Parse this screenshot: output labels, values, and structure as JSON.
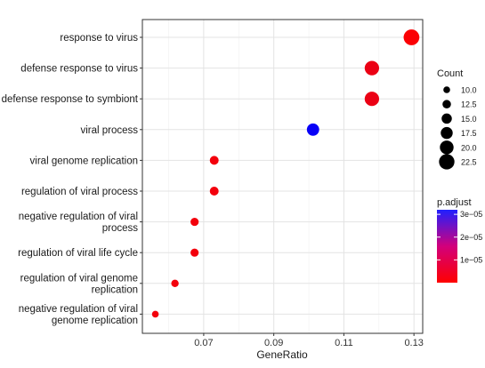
{
  "chart_data": {
    "type": "scatter",
    "xlabel": "GeneRatio",
    "ylabel": "",
    "xlim": [
      0.0525,
      0.1325
    ],
    "x_ticks": [
      "0.07",
      "0.09",
      "0.11",
      "0.13"
    ],
    "x_tick_values": [
      0.07,
      0.09,
      0.11,
      0.13
    ],
    "grid": true,
    "legend_position": "right",
    "terms": [
      {
        "label": "response to virus",
        "gene_ratio": 0.1293,
        "count": 23,
        "p_adjust": 5e-07
      },
      {
        "label": "defense response to virus",
        "gene_ratio": 0.118,
        "count": 21,
        "p_adjust": 2.5e-06
      },
      {
        "label": "defense response to symbiont",
        "gene_ratio": 0.118,
        "count": 21,
        "p_adjust": 2.5e-06
      },
      {
        "label": "viral process",
        "gene_ratio": 0.1012,
        "count": 18,
        "p_adjust": 3.1e-05
      },
      {
        "label": "viral genome replication",
        "gene_ratio": 0.073,
        "count": 13,
        "p_adjust": 1.5e-06
      },
      {
        "label": "regulation of viral process",
        "gene_ratio": 0.073,
        "count": 13,
        "p_adjust": 1.5e-06
      },
      {
        "label": "negative regulation of viral process",
        "gene_ratio": 0.0674,
        "count": 12,
        "p_adjust": 1.5e-06
      },
      {
        "label": "regulation of viral life cycle",
        "gene_ratio": 0.0674,
        "count": 12,
        "p_adjust": 1.5e-06
      },
      {
        "label": "regulation of viral genome replication",
        "gene_ratio": 0.0618,
        "count": 11,
        "p_adjust": 1.5e-06
      },
      {
        "label": "negative regulation of viral genome replication",
        "gene_ratio": 0.0562,
        "count": 10,
        "p_adjust": 1.5e-06
      }
    ],
    "label_lines": [
      [
        "response to virus"
      ],
      [
        "defense response to virus"
      ],
      [
        "defense response to symbiont"
      ],
      [
        "viral process"
      ],
      [
        "viral genome replication"
      ],
      [
        "regulation of viral process"
      ],
      [
        "negative regulation of viral",
        "process"
      ],
      [
        "regulation of viral life cycle"
      ],
      [
        "regulation of viral genome",
        "replication"
      ],
      [
        "negative regulation of viral",
        "genome replication"
      ]
    ],
    "size_legend": {
      "title": "Count",
      "labels": [
        "10.0",
        "12.5",
        "15.0",
        "17.5",
        "20.0",
        "22.5"
      ],
      "values": [
        10.0,
        12.5,
        15.0,
        17.5,
        20.0,
        22.5
      ]
    },
    "color_legend": {
      "title": "p.adjust",
      "labels": [
        "3e−05",
        "2e−05",
        "1e−05"
      ],
      "values": [
        3e-05,
        2e-05,
        1e-05
      ],
      "range": [
        0.0,
        3.2e-05
      ],
      "low_color": "#ff0000",
      "high_color": "#0000ff"
    }
  }
}
